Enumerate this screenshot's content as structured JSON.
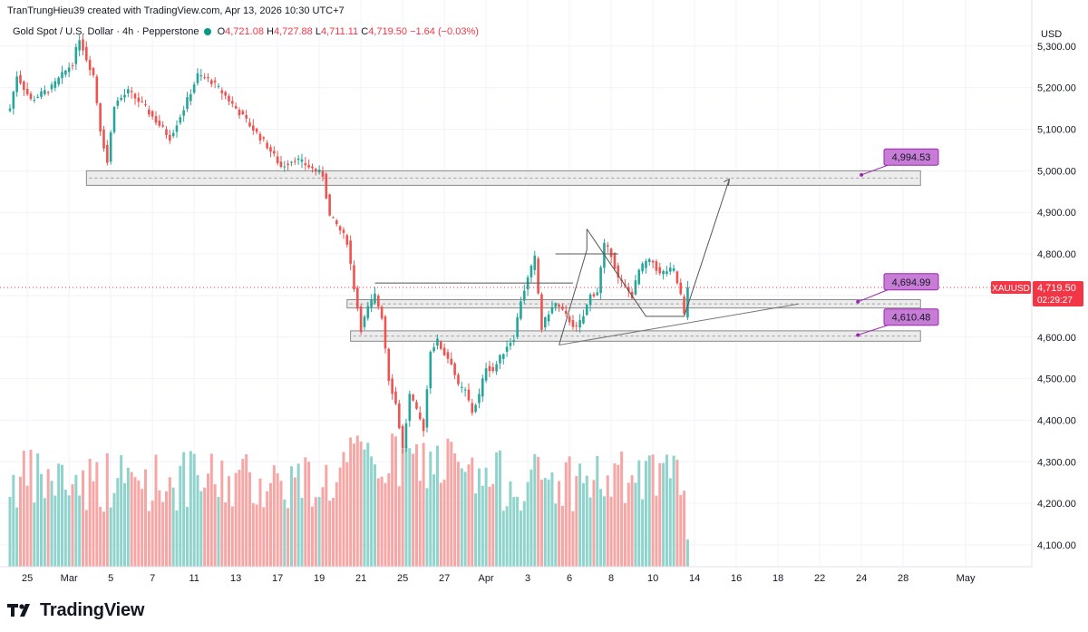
{
  "header": {
    "created_line": "TranTrungHieu39 created with TradingView.com, Apr 13, 2026 10:30 UTC+7",
    "symbol_title": "Gold Spot / U.S. Dollar · 4h · Pepperstone",
    "ohlc": {
      "o_label": "O",
      "o_value": "4,721.08",
      "h_label": "H",
      "h_value": "4,727.88",
      "l_label": "L",
      "l_value": "4,711.11",
      "c_label": "C",
      "c_value": "4,719.50",
      "change": "−1.64 (−0.03%)"
    }
  },
  "price_axis": {
    "currency": "USD",
    "symbol_tag": "XAUUSD",
    "last_price": "4,719.50",
    "countdown": "02:29:27"
  },
  "colors": {
    "up": "#26a69a",
    "down": "#ef5350",
    "up_volume": "#8fd3cc",
    "down_volume": "#f6a7a5",
    "zone_fill": "#e6e6e6",
    "label_fill": "#c77dd6",
    "label_border": "#9c27b0",
    "price_tag": "#f23645"
  },
  "brand": {
    "name": "TradingView"
  },
  "chart_data": {
    "type": "candlestick",
    "title": "Gold Spot / U.S. Dollar",
    "timeframe": "4h",
    "ylim": [
      4040,
      5350
    ],
    "y_ticks": [
      {
        "value": 4100,
        "label": "4,100.00"
      },
      {
        "value": 4200,
        "label": "4,200.00"
      },
      {
        "value": 4300,
        "label": "4,300.00"
      },
      {
        "value": 4400,
        "label": "4,400.00"
      },
      {
        "value": 4500,
        "label": "4,500.00"
      },
      {
        "value": 4600,
        "label": "4,600.00"
      },
      {
        "value": 4700,
        "label": "4,700.00"
      },
      {
        "value": 4800,
        "label": "4,800.00"
      },
      {
        "value": 4900,
        "label": "4,900.00"
      },
      {
        "value": 5000,
        "label": "5,000.00"
      },
      {
        "value": 5100,
        "label": "5,100.00"
      },
      {
        "value": 5200,
        "label": "5,200.00"
      },
      {
        "value": 5300,
        "label": "5,300.00"
      }
    ],
    "x_ticks": [
      {
        "bar": 5,
        "label": "25"
      },
      {
        "bar": 17,
        "label": "Mar"
      },
      {
        "bar": 29,
        "label": "5"
      },
      {
        "bar": 41,
        "label": "7"
      },
      {
        "bar": 53,
        "label": "11"
      },
      {
        "bar": 65,
        "label": "13"
      },
      {
        "bar": 77,
        "label": "17"
      },
      {
        "bar": 89,
        "label": "19"
      },
      {
        "bar": 101,
        "label": "21"
      },
      {
        "bar": 113,
        "label": "25"
      },
      {
        "bar": 125,
        "label": "27"
      },
      {
        "bar": 137,
        "label": "Apr"
      },
      {
        "bar": 149,
        "label": "3"
      },
      {
        "bar": 161,
        "label": "6"
      },
      {
        "bar": 173,
        "label": "8"
      },
      {
        "bar": 185,
        "label": "10"
      },
      {
        "bar": 197,
        "label": "14"
      },
      {
        "bar": 209,
        "label": "16"
      },
      {
        "bar": 221,
        "label": "18"
      },
      {
        "bar": 233,
        "label": "22"
      },
      {
        "bar": 245,
        "label": "24"
      },
      {
        "bar": 257,
        "label": "28"
      },
      {
        "bar": 275,
        "label": "May"
      }
    ],
    "price_anchors": [
      [
        0,
        5150
      ],
      [
        2,
        5230
      ],
      [
        6,
        5170
      ],
      [
        12,
        5200
      ],
      [
        18,
        5260
      ],
      [
        20,
        5320
      ],
      [
        22,
        5270
      ],
      [
        24,
        5230
      ],
      [
        26,
        5100
      ],
      [
        28,
        5020
      ],
      [
        30,
        5160
      ],
      [
        34,
        5190
      ],
      [
        38,
        5160
      ],
      [
        42,
        5120
      ],
      [
        46,
        5080
      ],
      [
        50,
        5150
      ],
      [
        54,
        5230
      ],
      [
        58,
        5215
      ],
      [
        62,
        5180
      ],
      [
        66,
        5140
      ],
      [
        70,
        5100
      ],
      [
        74,
        5060
      ],
      [
        78,
        5010
      ],
      [
        82,
        5030
      ],
      [
        86,
        5010
      ],
      [
        90,
        4990
      ],
      [
        92,
        4890
      ],
      [
        94,
        4870
      ],
      [
        97,
        4830
      ],
      [
        99,
        4720
      ],
      [
        101,
        4620
      ],
      [
        103,
        4670
      ],
      [
        105,
        4700
      ],
      [
        107,
        4650
      ],
      [
        109,
        4500
      ],
      [
        111,
        4440
      ],
      [
        113,
        4330
      ],
      [
        115,
        4460
      ],
      [
        117,
        4420
      ],
      [
        119,
        4380
      ],
      [
        121,
        4570
      ],
      [
        123,
        4590
      ],
      [
        125,
        4560
      ],
      [
        127,
        4540
      ],
      [
        129,
        4480
      ],
      [
        131,
        4470
      ],
      [
        133,
        4420
      ],
      [
        135,
        4460
      ],
      [
        137,
        4530
      ],
      [
        139,
        4520
      ],
      [
        141,
        4550
      ],
      [
        143,
        4580
      ],
      [
        145,
        4600
      ],
      [
        147,
        4690
      ],
      [
        149,
        4740
      ],
      [
        151,
        4790
      ],
      [
        153,
        4620
      ],
      [
        155,
        4660
      ],
      [
        157,
        4680
      ],
      [
        159,
        4660
      ],
      [
        161,
        4640
      ],
      [
        163,
        4620
      ],
      [
        165,
        4650
      ],
      [
        167,
        4700
      ],
      [
        169,
        4710
      ],
      [
        171,
        4820
      ],
      [
        173,
        4800
      ],
      [
        175,
        4740
      ],
      [
        177,
        4720
      ],
      [
        179,
        4700
      ],
      [
        181,
        4760
      ],
      [
        183,
        4780
      ],
      [
        185,
        4780
      ],
      [
        187,
        4750
      ],
      [
        189,
        4760
      ],
      [
        191,
        4760
      ],
      [
        193,
        4700
      ],
      [
        194,
        4650
      ],
      [
        195,
        4719.5
      ]
    ],
    "zones": [
      {
        "name": "resistance-zone",
        "bar_from": 22,
        "bar_to": 262,
        "low": 4965,
        "high": 5000
      },
      {
        "name": "support-zone-upper",
        "bar_from": 97,
        "bar_to": 262,
        "low": 4670,
        "high": 4690
      },
      {
        "name": "support-zone-lower",
        "bar_from": 98,
        "bar_to": 262,
        "low": 4590,
        "high": 4615
      }
    ],
    "drawings": {
      "projection_path": [
        [
          166,
          4860
        ],
        [
          183,
          4650
        ],
        [
          194,
          4650
        ],
        [
          207,
          4980
        ]
      ],
      "triangle_wedge": [
        [
          158,
          4581
        ],
        [
          166,
          4810
        ],
        [
          166,
          4860
        ]
      ],
      "range_top_line": [
        [
          105,
          4730
        ],
        [
          162,
          4730
        ]
      ],
      "box_top_line": [
        [
          157,
          4800
        ],
        [
          175,
          4800
        ]
      ],
      "trend_line": [
        [
          158,
          4581
        ],
        [
          227,
          4680
        ]
      ]
    },
    "price_labels": [
      {
        "text": "4,994.53",
        "price": 5033,
        "anchor_bar": 245,
        "anchor_price": 4990
      },
      {
        "text": "4,694.99",
        "price": 4733,
        "anchor_bar": 244,
        "anchor_price": 4685
      },
      {
        "text": "4,610.48",
        "price": 4648,
        "anchor_bar": 244,
        "anchor_price": 4605
      }
    ]
  }
}
